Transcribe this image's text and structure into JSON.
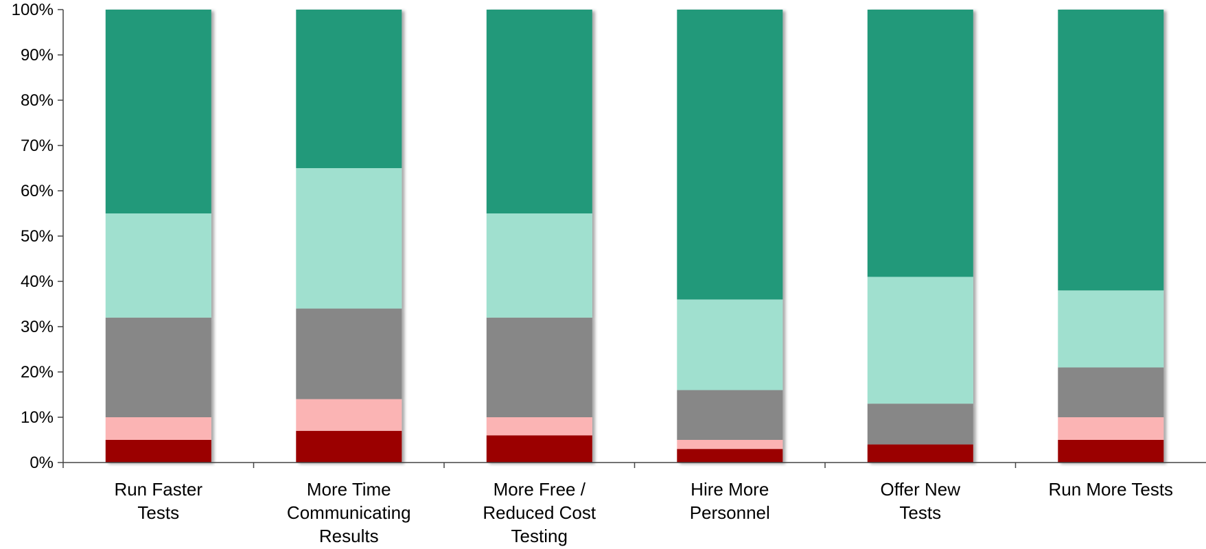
{
  "chart_data": {
    "type": "bar",
    "stacked": true,
    "categories": [
      [
        "Run Faster",
        "Tests"
      ],
      [
        "More Time",
        "Communicating",
        "Results"
      ],
      [
        "More Free /",
        "Reduced Cost",
        "Testing"
      ],
      [
        "Hire More",
        "Personnel"
      ],
      [
        "Offer New",
        "Tests"
      ],
      [
        "Run More Tests"
      ]
    ],
    "series": [
      {
        "color": "#9B0000",
        "values": [
          5,
          7,
          6,
          3,
          4,
          5
        ]
      },
      {
        "color": "#FBB4B4",
        "values": [
          5,
          7,
          4,
          2,
          0,
          5
        ]
      },
      {
        "color": "#878787",
        "values": [
          22,
          20,
          22,
          11,
          9,
          11
        ]
      },
      {
        "color": "#A0E0CF",
        "values": [
          23,
          31,
          23,
          20,
          28,
          17
        ]
      },
      {
        "color": "#22997A",
        "values": [
          45,
          35,
          45,
          64,
          59,
          62
        ]
      }
    ],
    "yticks": [
      "0%",
      "10%",
      "20%",
      "30%",
      "40%",
      "50%",
      "60%",
      "70%",
      "80%",
      "90%",
      "100%"
    ],
    "ylim": [
      0,
      100
    ],
    "grid": false,
    "legend": "none"
  }
}
